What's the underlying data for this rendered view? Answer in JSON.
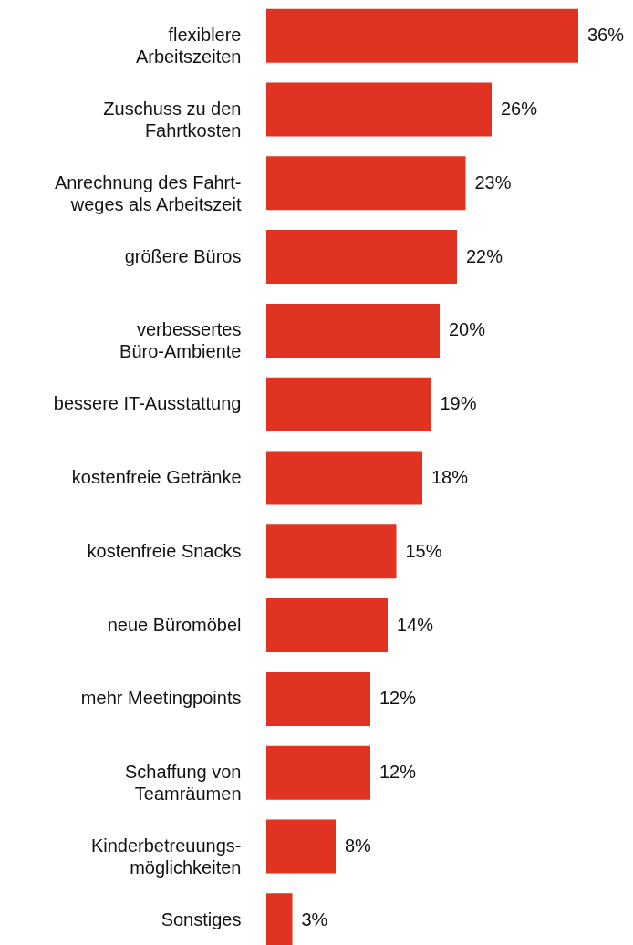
{
  "chart_data": {
    "type": "bar",
    "orientation": "horizontal",
    "categories": [
      "flexiblere\nArbeitszeiten",
      "Zuschuss zu den\nFahrtkosten",
      "Anrechnung des Fahrt-\nweges als Arbeitszeit",
      "größere Büros",
      "verbessertes\nBüro-Ambiente",
      "bessere IT-Ausstattung",
      "kostenfreie Getränke",
      "kostenfreie Snacks",
      "neue Büromöbel",
      "mehr Meetingpoints",
      "Schaffung von\nTeamräumen",
      "Kinderbetreuungs-\nmöglichkeiten",
      "Sonstiges"
    ],
    "values": [
      36,
      26,
      23,
      22,
      20,
      19,
      18,
      15,
      14,
      12,
      12,
      8,
      3
    ],
    "value_labels": [
      "36%",
      "26%",
      "23%",
      "22%",
      "20%",
      "19%",
      "18%",
      "15%",
      "14%",
      "12%",
      "12%",
      "8%",
      "3%"
    ],
    "color": "#e03322"
  }
}
